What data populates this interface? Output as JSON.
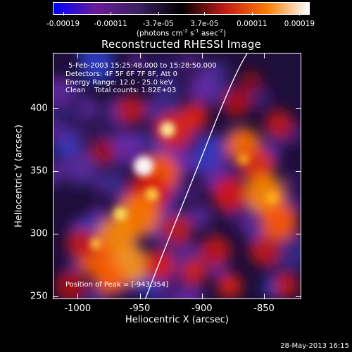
{
  "colorbar": {
    "tick_labels": [
      "-0.00019",
      "-0.00011",
      "-3.7e-05",
      "3.7e-05",
      "0.00011",
      "0.00019"
    ],
    "units_prefix": "(photons cm",
    "units_sup1": "-2",
    "units_mid1": " s",
    "units_sup2": "-1",
    "units_mid2": " asec",
    "units_sup3": "-2",
    "units_suffix": ")",
    "colors": [
      "#0000ff",
      "#6a1b9a",
      "#3a2060",
      "#000000",
      "#c01818",
      "#ff7a00",
      "#ffffff"
    ]
  },
  "image": {
    "title": "Reconstructed RHESSI Image",
    "info_lines": [
      "5-Feb-2003 15:25:48.000 to 15:28:50.000",
      "Detectors: 4F 5F 6F 7F 8F, Att 0",
      "Energy Range: 12.0 - 25.0 keV",
      "Clean    Total counts: 1.82E+03"
    ],
    "peak_text": "Position of Peak = [-943,354]"
  },
  "axes": {
    "x_title": "Heliocentric X (arcsec)",
    "y_title": "Heliocentric Y (arcsec)",
    "x_ticks": [
      "-1000",
      "-950",
      "-900",
      "-850"
    ],
    "y_ticks": [
      "400",
      "350",
      "300",
      "250"
    ],
    "x_tick_values": [
      -1000,
      -950,
      -900,
      -850
    ],
    "y_tick_values": [
      400,
      350,
      300,
      250
    ],
    "xlim": [
      -1020,
      -820
    ],
    "ylim": [
      248,
      444
    ]
  },
  "footer": {
    "timestamp": "28-May-2013 16:15"
  }
}
